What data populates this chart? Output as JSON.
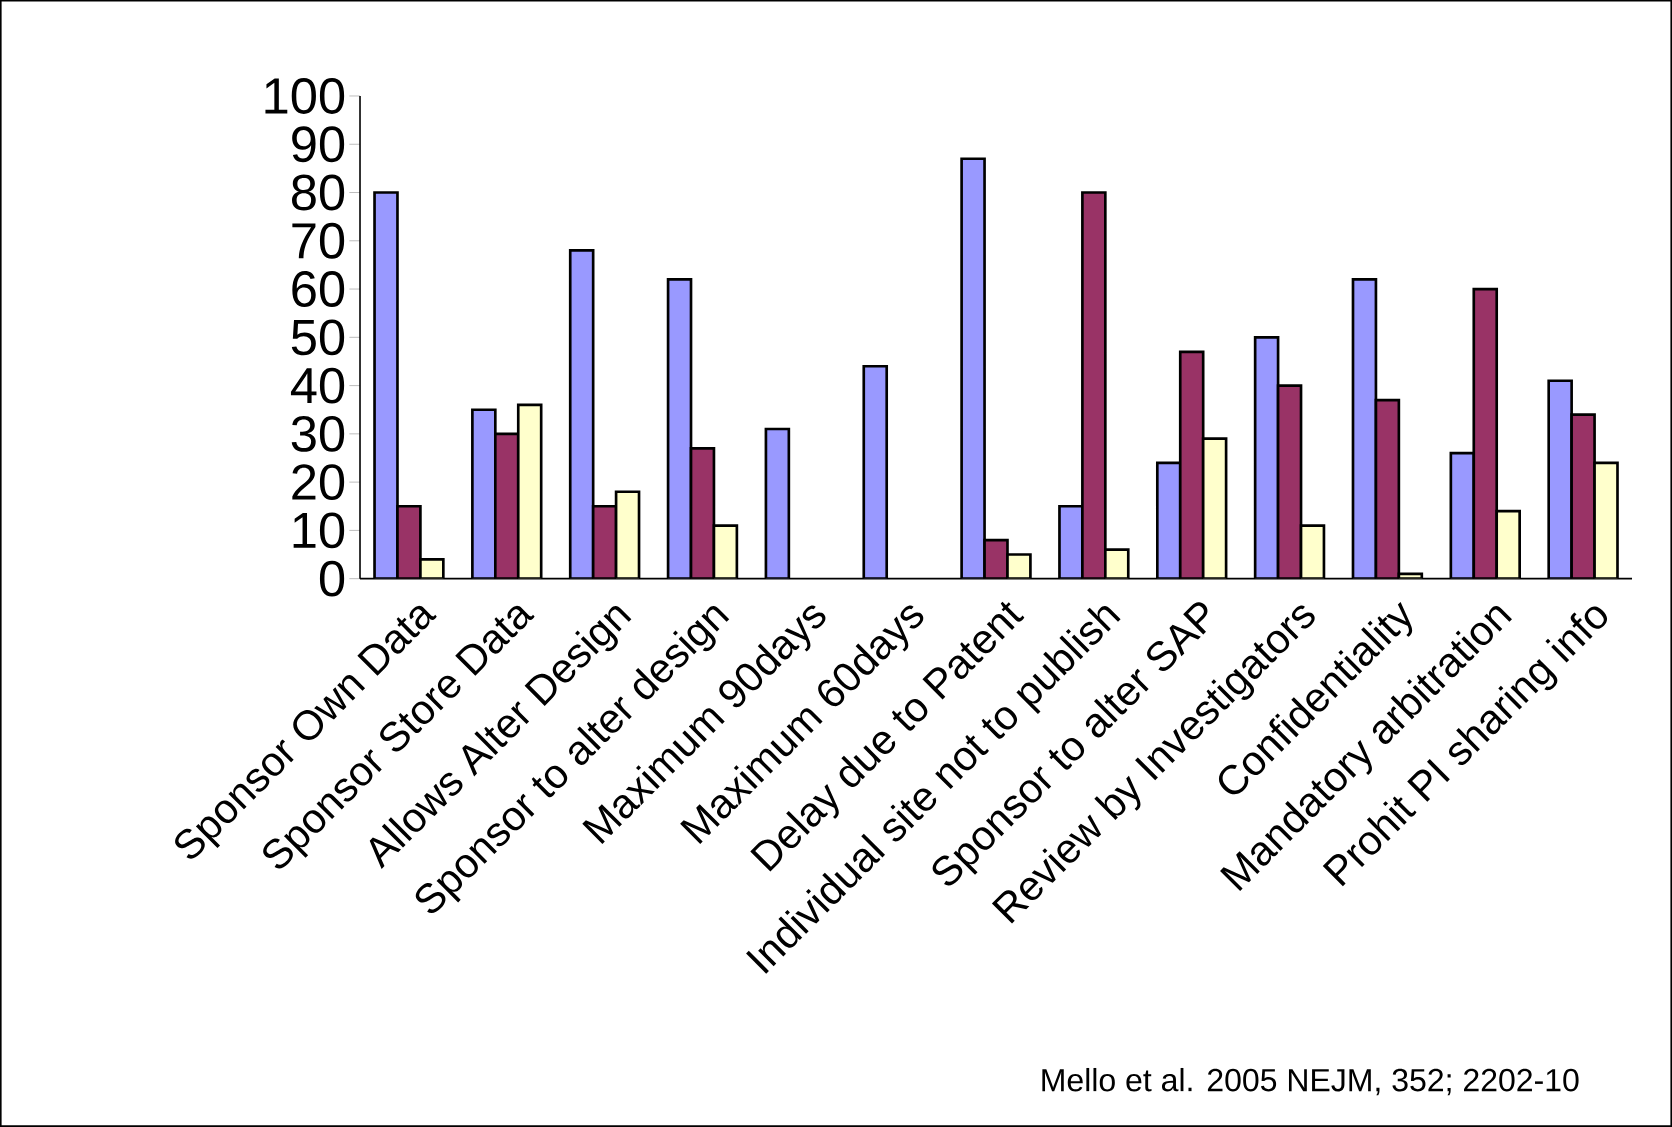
{
  "chart_data": {
    "type": "bar",
    "categories": [
      "Sponsor Own Data",
      "Sponsor Store Data",
      "Allows Alter Design",
      "Sponsor to alter design",
      "Maximum 90days",
      "Maximum 60days",
      "Delay due to Patent",
      "Individual site not to publish",
      "Sponsor to alter SAP",
      "Review by Investigators",
      "Confidentiality",
      "Mandatory arbitration",
      "Prohit PI sharing info"
    ],
    "series": [
      {
        "color": "#9999ff",
        "values": [
          80,
          35,
          68,
          62,
          31,
          44,
          87,
          15,
          24,
          50,
          62,
          26,
          41
        ]
      },
      {
        "color": "#993366",
        "values": [
          15,
          30,
          15,
          27,
          null,
          null,
          8,
          80,
          47,
          40,
          37,
          60,
          34
        ]
      },
      {
        "color": "#ffffcc",
        "values": [
          4,
          36,
          18,
          11,
          null,
          null,
          5,
          6,
          29,
          11,
          1,
          14,
          24
        ]
      }
    ],
    "ylim": [
      0,
      100
    ],
    "yticks": [
      0,
      10,
      20,
      30,
      40,
      50,
      60,
      70,
      80,
      90,
      100
    ],
    "grid": false,
    "annotations": [
      "Mello et al. 2005 NEJM, 352; 2202-10"
    ]
  }
}
